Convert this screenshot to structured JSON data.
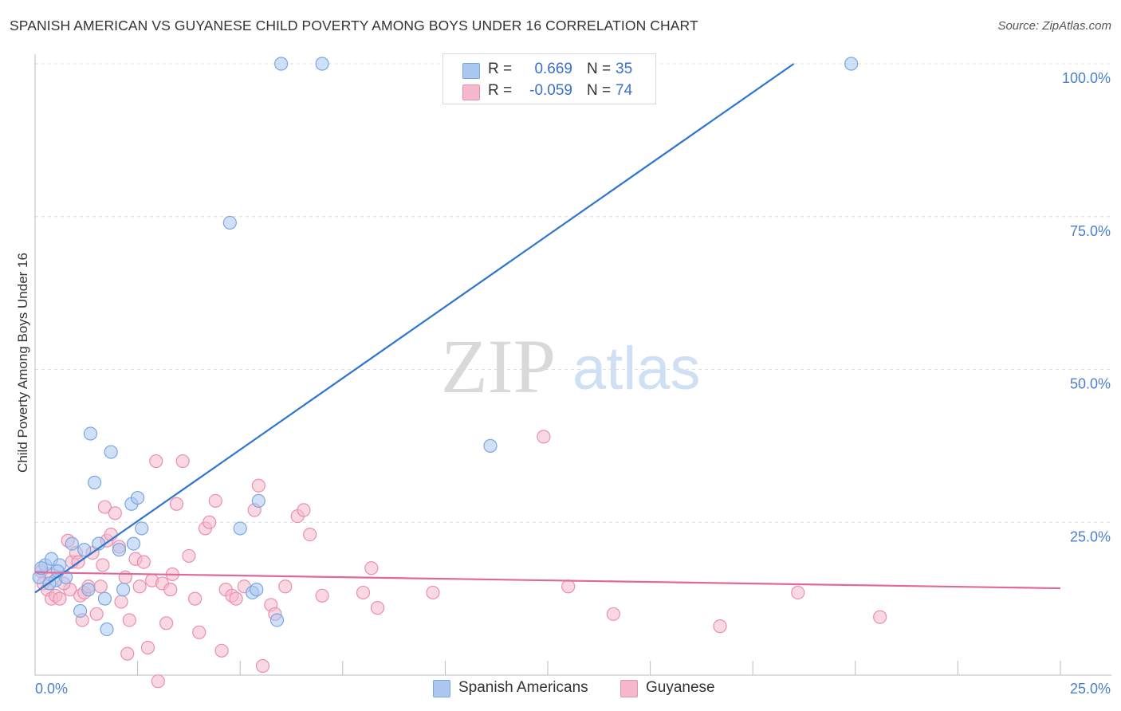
{
  "title": "SPANISH AMERICAN VS GUYANESE CHILD POVERTY AMONG BOYS UNDER 16 CORRELATION CHART",
  "source": "Source: ZipAtlas.com",
  "watermark": {
    "zip": "ZIP",
    "atlas": "atlas"
  },
  "colors": {
    "blue_fill": "#aac8f0",
    "blue_stroke": "#7aa6e0",
    "blue_line": "#2f74cf",
    "pink_fill": "#f5b8cb",
    "pink_stroke": "#e98fb0",
    "pink_line": "#e0689a",
    "grid": "#dddddd",
    "axis_text": "#4a7fd0"
  },
  "legend": {
    "rows": [
      {
        "r_label": "R =",
        "r_value": "0.669",
        "n_label": "N =",
        "n_value": "35",
        "color": "#aac8f0",
        "border": "#7aa6e0"
      },
      {
        "r_label": "R =",
        "r_value": "-0.059",
        "n_label": "N =",
        "n_value": "74",
        "color": "#f5b8cb",
        "border": "#e98fb0"
      }
    ],
    "bottom": [
      {
        "label": "Spanish Americans",
        "color": "#aac8f0",
        "border": "#7aa6e0"
      },
      {
        "label": "Guyanese",
        "color": "#f5b8cb",
        "border": "#e98fb0"
      }
    ]
  },
  "chart_data": {
    "type": "scatter",
    "title": "SPANISH AMERICAN VS GUYANESE CHILD POVERTY AMONG BOYS UNDER 16 CORRELATION CHART",
    "xlabel": "",
    "ylabel": "Child Poverty Among Boys Under 16",
    "xlim": [
      0,
      25
    ],
    "ylim": [
      0,
      100
    ],
    "x_tick_labels": [
      "0.0%",
      "25.0%"
    ],
    "y_tick_labels": [
      "100.0%",
      "75.0%",
      "50.0%",
      "25.0%"
    ],
    "y_ticks": [
      100,
      75,
      50,
      25
    ],
    "grid": true,
    "legend_position": "top-center",
    "series": [
      {
        "name": "Spanish Americans",
        "R": 0.669,
        "N": 35,
        "trend": {
          "x": [
            0.0,
            18.5
          ],
          "y": [
            13.5,
            100
          ]
        },
        "points": [
          [
            0.1,
            16
          ],
          [
            0.25,
            18
          ],
          [
            0.4,
            19
          ],
          [
            0.5,
            15.5
          ],
          [
            0.6,
            18
          ],
          [
            0.75,
            16
          ],
          [
            0.9,
            21.5
          ],
          [
            1.1,
            10.5
          ],
          [
            1.2,
            20.5
          ],
          [
            1.35,
            39.5
          ],
          [
            1.45,
            31.5
          ],
          [
            1.55,
            21.5
          ],
          [
            1.7,
            12.5
          ],
          [
            1.75,
            7.5
          ],
          [
            1.85,
            36.5
          ],
          [
            2.05,
            20.5
          ],
          [
            2.15,
            14
          ],
          [
            2.35,
            28
          ],
          [
            2.4,
            21.5
          ],
          [
            2.5,
            29
          ],
          [
            2.6,
            24
          ],
          [
            4.75,
            74
          ],
          [
            5.0,
            24
          ],
          [
            5.3,
            13.5
          ],
          [
            5.4,
            14
          ],
          [
            5.45,
            28.5
          ],
          [
            5.9,
            9
          ],
          [
            6.0,
            100
          ],
          [
            7.0,
            100
          ],
          [
            11.1,
            37.5
          ],
          [
            19.9,
            100
          ],
          [
            0.15,
            17.5
          ],
          [
            0.35,
            15
          ],
          [
            0.55,
            17
          ],
          [
            1.3,
            14
          ]
        ]
      },
      {
        "name": "Guyanese",
        "R": -0.059,
        "N": 74,
        "trend": {
          "x": [
            0.0,
            25.0
          ],
          "y": [
            16.8,
            14.2
          ]
        },
        "points": [
          [
            0.15,
            17
          ],
          [
            0.2,
            15
          ],
          [
            0.3,
            14
          ],
          [
            0.4,
            12.5
          ],
          [
            0.5,
            13
          ],
          [
            0.6,
            12.5
          ],
          [
            0.8,
            22
          ],
          [
            0.85,
            14
          ],
          [
            0.9,
            18.5
          ],
          [
            1.0,
            20
          ],
          [
            1.05,
            18.5
          ],
          [
            1.1,
            13
          ],
          [
            1.15,
            9
          ],
          [
            1.2,
            13.5
          ],
          [
            1.3,
            14.5
          ],
          [
            1.4,
            20
          ],
          [
            1.5,
            10
          ],
          [
            1.65,
            18
          ],
          [
            1.7,
            27.5
          ],
          [
            1.75,
            22
          ],
          [
            1.85,
            23
          ],
          [
            1.95,
            26.5
          ],
          [
            2.05,
            21
          ],
          [
            2.1,
            12
          ],
          [
            2.2,
            16
          ],
          [
            2.25,
            3.5
          ],
          [
            2.3,
            9
          ],
          [
            2.45,
            19
          ],
          [
            2.55,
            14.5
          ],
          [
            2.65,
            18.5
          ],
          [
            2.75,
            4.5
          ],
          [
            2.85,
            15.5
          ],
          [
            2.95,
            35
          ],
          [
            3.0,
            -1
          ],
          [
            3.1,
            15
          ],
          [
            3.2,
            8.5
          ],
          [
            3.3,
            14
          ],
          [
            3.35,
            16.5
          ],
          [
            3.45,
            28
          ],
          [
            3.6,
            35
          ],
          [
            3.75,
            19.5
          ],
          [
            3.9,
            12.5
          ],
          [
            4.0,
            7
          ],
          [
            4.15,
            24
          ],
          [
            4.25,
            25
          ],
          [
            4.4,
            28.5
          ],
          [
            4.55,
            4
          ],
          [
            4.65,
            14
          ],
          [
            4.8,
            13
          ],
          [
            4.9,
            12.5
          ],
          [
            5.1,
            14.5
          ],
          [
            5.35,
            27
          ],
          [
            5.45,
            31
          ],
          [
            5.55,
            1.5
          ],
          [
            5.75,
            11.5
          ],
          [
            5.85,
            10
          ],
          [
            6.1,
            14.5
          ],
          [
            6.4,
            26
          ],
          [
            6.55,
            27
          ],
          [
            6.7,
            23
          ],
          [
            7.0,
            13
          ],
          [
            8.0,
            13.5
          ],
          [
            8.2,
            17.5
          ],
          [
            8.35,
            11
          ],
          [
            9.7,
            13.5
          ],
          [
            12.4,
            39
          ],
          [
            13.0,
            14.5
          ],
          [
            14.1,
            10
          ],
          [
            16.7,
            8
          ],
          [
            18.6,
            13.5
          ],
          [
            20.6,
            9.5
          ],
          [
            0.35,
            16.5
          ],
          [
            0.7,
            15
          ],
          [
            1.6,
            14.5
          ]
        ]
      }
    ]
  }
}
